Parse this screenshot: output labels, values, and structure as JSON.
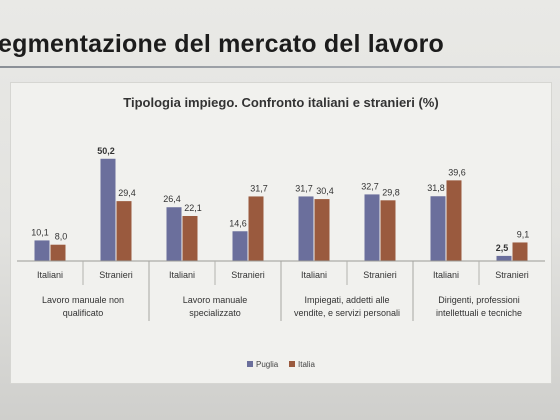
{
  "slide": {
    "heading": "egmentazione del mercato del lavoro"
  },
  "colors": {
    "puglia": "#6b6f9c",
    "italia": "#9a5a3e"
  },
  "chart_data": {
    "type": "bar",
    "title": "Tipologia impiego. Confronto italiani e stranieri (%)",
    "xlabel": "",
    "ylabel": "",
    "ylim": [
      0,
      55
    ],
    "grid": false,
    "legend": "bottom-center",
    "groups": [
      {
        "label": "Lavoro manuale non qualificato",
        "label_lines": [
          "Lavoro manuale non",
          "qualificato"
        ]
      },
      {
        "label": "Lavoro manuale specializzato",
        "label_lines": [
          "Lavoro manuale",
          "specializzato"
        ]
      },
      {
        "label": "Impiegati, addetti alle vendite, e servizi personali",
        "label_lines": [
          "Impiegati, addetti alle",
          "vendite, e servizi personali"
        ]
      },
      {
        "label": "Dirigenti, professioni intellettuali e tecniche",
        "label_lines": [
          "Dirigenti, professioni",
          "intellettuali e tecniche"
        ]
      }
    ],
    "categories": [
      "Italiani",
      "Stranieri",
      "Italiani",
      "Stranieri",
      "Italiani",
      "Stranieri",
      "Italiani",
      "Stranieri"
    ],
    "series": [
      {
        "name": "Puglia",
        "values": [
          10.1,
          50.2,
          26.4,
          14.6,
          31.7,
          32.7,
          31.8,
          2.5
        ],
        "labels": [
          "10,1",
          "50,2",
          "26,4",
          "14,6",
          "31,7",
          "32,7",
          "31,8",
          "2,5"
        ]
      },
      {
        "name": "Italia",
        "values": [
          8.0,
          29.4,
          22.1,
          31.7,
          30.4,
          29.8,
          39.6,
          9.1
        ],
        "labels": [
          "8,0",
          "29,4",
          "22,1",
          "31,7",
          "30,4",
          "29,8",
          "39,6",
          "9,1"
        ]
      }
    ]
  }
}
